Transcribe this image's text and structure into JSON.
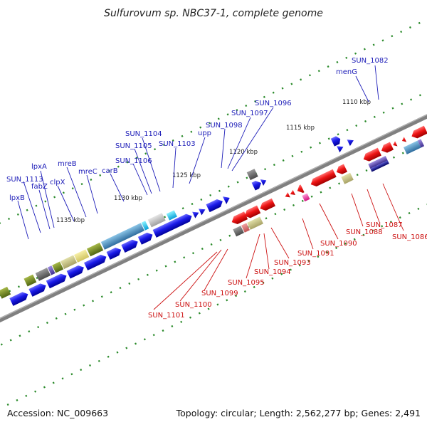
{
  "title": "Sulfurovum sp. NBC37-1, complete genome",
  "accession": "Accession: NC_009663",
  "summary": "Topology: circular; Length: 2,562,277 bp; Genes: 2,491",
  "tick_labels": [
    "1110 kbp",
    "1115 kbp",
    "1120 kbp",
    "1125 kbp",
    "1130 kbp",
    "1135 kbp"
  ],
  "forward_gene_labels": [
    "SUN_1082",
    "menG",
    "SUN_1096",
    "SUN_1097",
    "SUN_1098",
    "upp",
    "SUN_1103",
    "SUN_1104",
    "SUN_1105",
    "SUN_1106",
    "carB",
    "mreC",
    "mreB",
    "clpX",
    "lpxA",
    "fabZ",
    "SUN_1113",
    "lpxB"
  ],
  "reverse_gene_labels": [
    "SUN_1086",
    "SUN_1087",
    "SUN_1088",
    "SUN_1090",
    "SUN_1091",
    "SUN_1093",
    "SUN_1094",
    "SUN_1095",
    "SUN_1099",
    "SUN_1100",
    "SUN_1101"
  ],
  "colors": {
    "forward_strand": "#1010e0",
    "reverse_strand": "#e01010",
    "backbone": "#808080",
    "tick": "#2a8a2a",
    "forward_label": "#1c1cb8",
    "reverse_label": "#cc1010"
  }
}
